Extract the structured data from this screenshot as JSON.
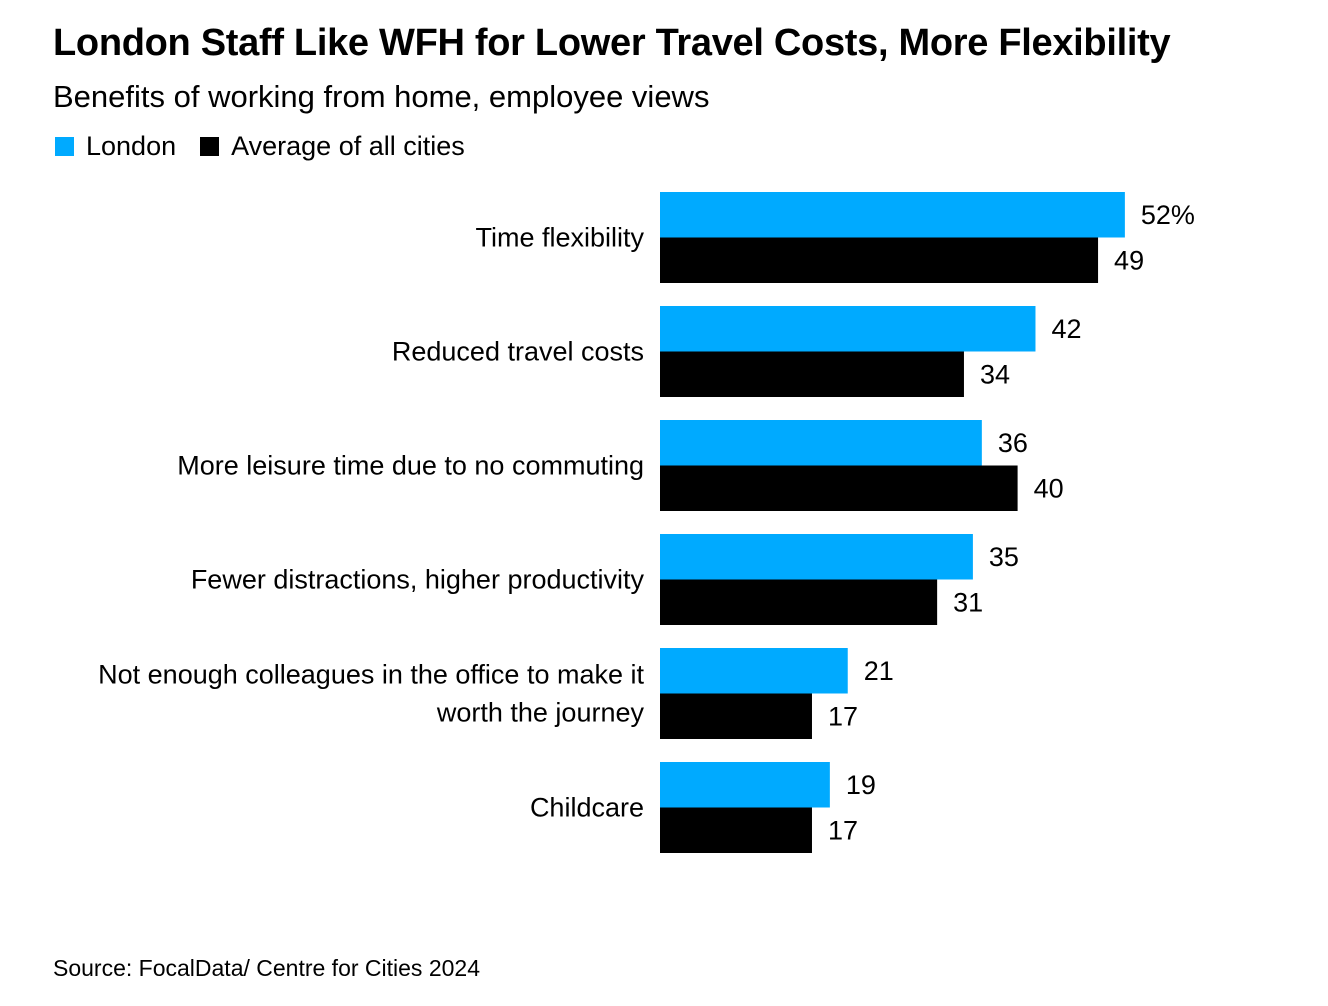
{
  "title": "London Staff Like WFH for Lower Travel Costs, More Flexibility",
  "subtitle": "Benefits of working from home, employee views",
  "source": "Source: FocalData/ Centre for Cities 2024",
  "colors": {
    "london": "#00aaff",
    "average": "#000000"
  },
  "chart_data": {
    "type": "bar",
    "orientation": "horizontal",
    "categories": [
      [
        "Time flexibility"
      ],
      [
        "Reduced travel costs"
      ],
      [
        "More leisure time due to no commuting"
      ],
      [
        "Fewer distractions, higher productivity"
      ],
      [
        "Not enough colleagues in the office to make it",
        "worth the journey"
      ],
      [
        "Childcare"
      ]
    ],
    "series": [
      {
        "name": "London",
        "values": [
          52,
          42,
          36,
          35,
          21,
          19
        ],
        "labels": [
          "52%",
          "42",
          "36",
          "35",
          "21",
          "19"
        ]
      },
      {
        "name": "Average of all cities",
        "values": [
          49,
          34,
          40,
          31,
          17,
          17
        ],
        "labels": [
          "49",
          "34",
          "40",
          "31",
          "17",
          "17"
        ]
      }
    ],
    "xlim": [
      0,
      100
    ],
    "grid": false,
    "legend": "top-left"
  }
}
